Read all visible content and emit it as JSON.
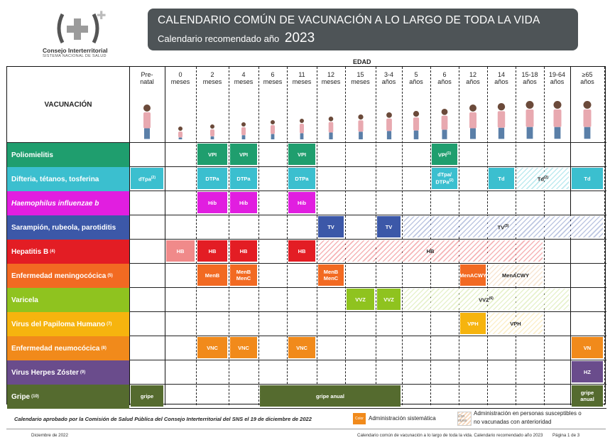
{
  "logo": {
    "name": "Consejo Interterritorial",
    "sub": "SISTEMA NACIONAL DE SALUD"
  },
  "title": {
    "line1": "CALENDARIO COMÚN DE VACUNACIÓN A LO LARGO DE TODA LA VIDA",
    "line2": "Calendario recomendado año",
    "year": "2023"
  },
  "edad_label": "EDAD",
  "vacuna_header": "VACUNACIÓN",
  "ages": [
    {
      "l1": "Pre-",
      "l2": "natal"
    },
    {
      "l1": "0",
      "l2": "meses"
    },
    {
      "l1": "2",
      "l2": "meses"
    },
    {
      "l1": "4",
      "l2": "meses"
    },
    {
      "l1": "6",
      "l2": "meses"
    },
    {
      "l1": "11",
      "l2": "meses"
    },
    {
      "l1": "12",
      "l2": "meses"
    },
    {
      "l1": "15",
      "l2": "meses"
    },
    {
      "l1": "3-4",
      "l2": "años"
    },
    {
      "l1": "5",
      "l2": "años"
    },
    {
      "l1": "6",
      "l2": "años"
    },
    {
      "l1": "12",
      "l2": "años"
    },
    {
      "l1": "14",
      "l2": "años"
    },
    {
      "l1": "15-18",
      "l2": "años"
    },
    {
      "l1": "19-64",
      "l2": "años"
    },
    {
      "l1": "≥65",
      "l2": "años"
    }
  ],
  "rows": [
    {
      "label": "Poliomielitis",
      "note": "",
      "color": "#1f9e6e"
    },
    {
      "label": "Difteria, tétanos, tosferina",
      "note": "",
      "color": "#3bbfcf"
    },
    {
      "label": "Haemophilus influenzae b",
      "note": "",
      "color": "#e11ee0"
    },
    {
      "label": "Sarampión, rubeola, parotiditis",
      "note": "",
      "color": "#3c58a8"
    },
    {
      "label": "Hepatitis B",
      "note": "(4)",
      "color": "#e31d24"
    },
    {
      "label": "Enfermedad meningocócica",
      "note": "(5)",
      "color": "#f26a22"
    },
    {
      "label": "Varicela",
      "note": "",
      "color": "#8fc31f"
    },
    {
      "label": "Virus del Papiloma Humano",
      "note": "(7)",
      "color": "#f6b40e"
    },
    {
      "label": "Enfermedad neumocócica",
      "note": "(8)",
      "color": "#f18a1b"
    },
    {
      "label": "Virus Herpes Zóster",
      "note": "(9)",
      "color": "#6a4c8c"
    },
    {
      "label": "Gripe",
      "note": "(10)",
      "color": "#556b2f"
    }
  ],
  "cells": {
    "polio": [
      {
        "text": "VPI"
      },
      {
        "text": "VPI"
      },
      {
        "text": "VPI"
      },
      {
        "text": "VPI",
        "note": "(1)"
      }
    ],
    "dtp": [
      {
        "text": "dTpa",
        "note": "(2)"
      },
      {
        "text": "DTPa"
      },
      {
        "text": "DTPa"
      },
      {
        "text": "DTPa"
      },
      {
        "text": "dTpa/",
        "text2": "DTPa",
        "note": "(2)"
      },
      {
        "text": "Td"
      },
      {
        "text": "Td",
        "note": "(2)"
      },
      {
        "text": "Td"
      }
    ],
    "hib": [
      {
        "text": "Hib"
      },
      {
        "text": "Hib"
      },
      {
        "text": "Hib"
      }
    ],
    "srp": [
      {
        "text": "TV"
      },
      {
        "text": "TV"
      },
      {
        "text": "TV",
        "note": "(3)"
      }
    ],
    "hepb": [
      {
        "text": "HB"
      },
      {
        "text": "HB"
      },
      {
        "text": "HB"
      },
      {
        "text": "HB"
      },
      {
        "text": "HB"
      }
    ],
    "men": [
      {
        "text": "MenB"
      },
      {
        "text": "MenB",
        "text2": "MenC"
      },
      {
        "text": "MenB",
        "text2": "MenC"
      },
      {
        "text": "MenACWY"
      },
      {
        "text": "MenACWY"
      }
    ],
    "var": [
      {
        "text": "VVZ"
      },
      {
        "text": "VVZ"
      },
      {
        "text": "VVZ",
        "note": "(6)"
      }
    ],
    "vph": [
      {
        "text": "VPH"
      },
      {
        "text": "VPH"
      }
    ],
    "neumo": [
      {
        "text": "VNC"
      },
      {
        "text": "VNC"
      },
      {
        "text": "VNC"
      },
      {
        "text": "VN"
      }
    ],
    "hz": [
      {
        "text": "HZ"
      }
    ],
    "gripe": [
      {
        "text": "gripe"
      },
      {
        "text": "gripe anual"
      },
      {
        "text": "gripe",
        "text2": "anual"
      }
    ]
  },
  "legend": {
    "approval": "Calendario aprobado por la Comisión de Salud Pública del Consejo Interterritorial del SNS el 19 de diciembre de 2022",
    "swatch_color": "Color",
    "sistematica": "Administración sistemática",
    "swatch_rayas": "Con rayas",
    "susceptibles_l1": "Administración en personas susceptibles o",
    "susceptibles_l2": "no vacunadas con anterioridad"
  },
  "footer": {
    "left": "Diciembre de 2022",
    "right": "Calendario común de vacunación a lo largo de toda la vida. Calendario recomendado año 2023",
    "page": "Página 1 de 3"
  }
}
